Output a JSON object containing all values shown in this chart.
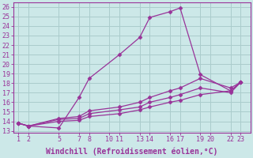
{
  "background_color": "#cce8e8",
  "grid_color": "#aacccc",
  "line_color": "#993399",
  "xlabel": "Windchill (Refroidissement éolien,°C)",
  "tick_fontsize": 6,
  "xlabel_fontsize": 7,
  "xlim": [
    0.5,
    24
  ],
  "ylim": [
    12.8,
    26.5
  ],
  "yticks": [
    13,
    14,
    15,
    16,
    17,
    18,
    19,
    20,
    21,
    22,
    23,
    24,
    25,
    26
  ],
  "xtick_positions": [
    1,
    2,
    5,
    7,
    8,
    10,
    11,
    13,
    14,
    16,
    17,
    19,
    20,
    22,
    23
  ],
  "xtick_labels": [
    "1",
    "2",
    "5",
    "7",
    "8",
    "10",
    "11",
    "13",
    "14",
    "16",
    "17",
    "19",
    "20",
    "22",
    "23"
  ],
  "series": [
    {
      "x": [
        1,
        2,
        5,
        7,
        8,
        11,
        13,
        14,
        16,
        17,
        19,
        22,
        23
      ],
      "y": [
        13.8,
        13.5,
        13.3,
        16.5,
        18.5,
        21.0,
        22.8,
        24.9,
        25.5,
        25.9,
        18.9,
        17.2,
        18.1
      ]
    },
    {
      "x": [
        1,
        2,
        5,
        7,
        8,
        11,
        13,
        14,
        16,
        17,
        19,
        22,
        23
      ],
      "y": [
        13.8,
        13.5,
        14.3,
        14.5,
        15.1,
        15.5,
        16.0,
        16.5,
        17.2,
        17.5,
        18.5,
        17.5,
        18.1
      ]
    },
    {
      "x": [
        1,
        2,
        5,
        7,
        8,
        11,
        13,
        14,
        16,
        17,
        19,
        22,
        23
      ],
      "y": [
        13.8,
        13.5,
        14.2,
        14.3,
        14.8,
        15.2,
        15.5,
        16.0,
        16.5,
        16.8,
        17.5,
        17.0,
        18.1
      ]
    },
    {
      "x": [
        1,
        2,
        5,
        7,
        8,
        11,
        13,
        14,
        16,
        17,
        19,
        22,
        23
      ],
      "y": [
        13.8,
        13.5,
        14.0,
        14.1,
        14.5,
        14.8,
        15.2,
        15.5,
        16.0,
        16.2,
        16.8,
        17.2,
        18.1
      ]
    }
  ]
}
